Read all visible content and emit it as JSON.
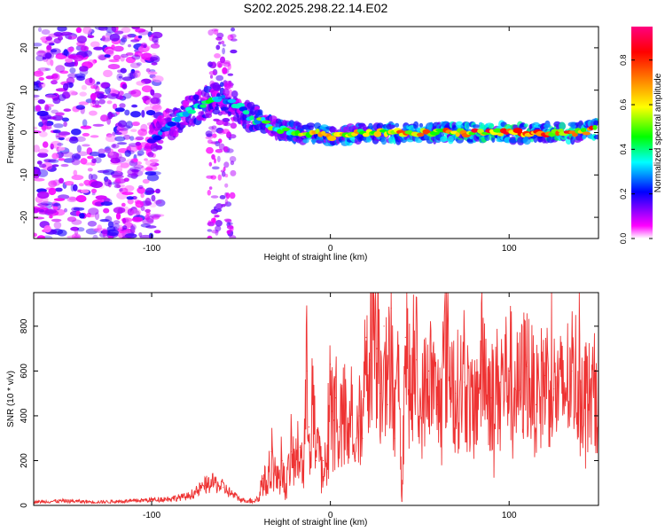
{
  "title": "S202.2025.298.22.14.E02",
  "colorbar": {
    "label": "Normalized spectral amplitude",
    "ticks": [
      "0.0",
      "0.2",
      "0.4",
      "0.6",
      "0.8"
    ],
    "tick_values": [
      0.0,
      0.2,
      0.4,
      0.6,
      0.8
    ],
    "range": [
      0.0,
      0.95
    ],
    "colors": [
      "#ffffff",
      "#ff00ff",
      "#0000ff",
      "#00ffff",
      "#00ff00",
      "#ffff00",
      "#ff8000",
      "#ff0000",
      "#ff0080"
    ]
  },
  "chart_data": [
    {
      "type": "heatmap",
      "name": "spectrogram",
      "xlabel": "Height of straight line (km)",
      "ylabel": "Frequency (Hz)",
      "xlim": [
        -166,
        150
      ],
      "ylim": [
        -25,
        25
      ],
      "xticks": [
        -100,
        0,
        100
      ],
      "xtick_labels": [
        "-100",
        "0",
        "100"
      ],
      "yticks": [
        -20,
        -10,
        0,
        10,
        20
      ],
      "ytick_labels": [
        "-20",
        "-10",
        "0",
        "10",
        "20"
      ],
      "ridge": {
        "x": [
          -100,
          -90,
          -80,
          -70,
          -60,
          -50,
          -45,
          -40,
          -35,
          -30,
          -20,
          -10,
          0,
          20,
          40,
          60,
          80,
          100,
          120,
          140,
          150
        ],
        "y": [
          -2,
          2,
          5,
          7,
          8,
          6,
          3,
          3,
          2,
          1,
          0,
          0,
          -1,
          0,
          0,
          0,
          0,
          0,
          0,
          0,
          1
        ],
        "amplitude": [
          0.3,
          0.35,
          0.4,
          0.45,
          0.45,
          0.4,
          0.45,
          0.5,
          0.5,
          0.55,
          0.6,
          0.65,
          0.7,
          0.7,
          0.75,
          0.8,
          0.85,
          0.85,
          0.85,
          0.85,
          0.8
        ]
      },
      "noise_region": {
        "x_range": [
          -166,
          -95
        ],
        "amplitude": 0.1
      }
    },
    {
      "type": "line",
      "name": "snr",
      "xlabel": "Height of straight line (km)",
      "ylabel": "SNR (10 * v/v)",
      "xlim": [
        -166,
        150
      ],
      "ylim": [
        0,
        950
      ],
      "xticks": [
        -100,
        0,
        100
      ],
      "xtick_labels": [
        "-100",
        "0",
        "100"
      ],
      "yticks": [
        0,
        200,
        400,
        600,
        800
      ],
      "ytick_labels": [
        "0",
        "200",
        "400",
        "600",
        "800"
      ],
      "color": "#ee3333",
      "series": [
        {
          "name": "SNR",
          "x": [
            -166,
            -150,
            -130,
            -110,
            -100,
            -90,
            -80,
            -75,
            -70,
            -65,
            -60,
            -55,
            -50,
            -45,
            -40,
            -38,
            -35,
            -33,
            -30,
            -27,
            -25,
            -22,
            -20,
            -17,
            -15,
            -13,
            -12,
            -10,
            -8,
            -6,
            -5,
            -4,
            -2,
            0,
            1,
            2,
            3,
            5,
            8,
            10,
            12,
            14,
            16,
            18,
            20,
            22,
            24,
            26,
            27,
            28,
            30,
            32,
            34,
            36,
            38,
            40,
            42,
            45,
            48,
            50,
            55,
            60,
            65,
            70,
            75,
            80,
            85,
            90,
            95,
            100,
            105,
            110,
            115,
            120,
            125,
            130,
            135,
            140,
            145,
            150
          ],
          "y": [
            15,
            20,
            15,
            20,
            25,
            30,
            40,
            60,
            90,
            100,
            80,
            50,
            25,
            20,
            30,
            120,
            90,
            240,
            100,
            200,
            60,
            240,
            180,
            260,
            150,
            600,
            350,
            450,
            200,
            300,
            110,
            200,
            150,
            630,
            420,
            380,
            480,
            350,
            380,
            250,
            450,
            200,
            400,
            300,
            750,
            650,
            900,
            700,
            950,
            500,
            800,
            450,
            880,
            300,
            600,
            20,
            750,
            450,
            650,
            400,
            600,
            450,
            700,
            500,
            550,
            400,
            650,
            480,
            550,
            600,
            500,
            620,
            450,
            580,
            520,
            500,
            600,
            550,
            480,
            520
          ]
        }
      ]
    }
  ]
}
